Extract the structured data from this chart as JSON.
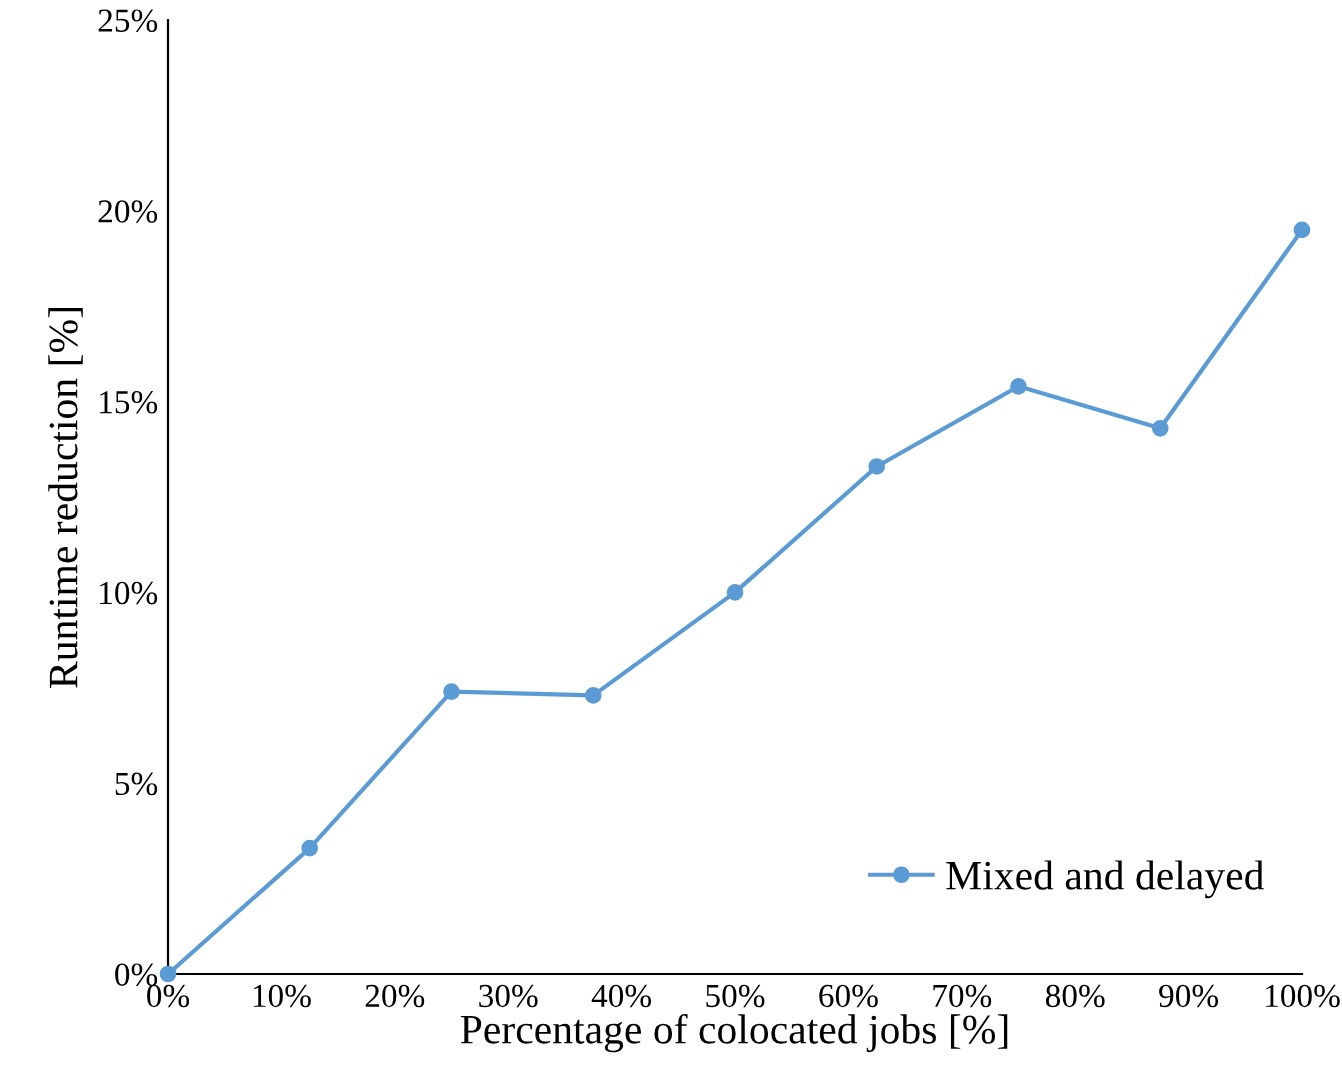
{
  "chart_data": {
    "type": "line",
    "xlabel": "Percentage of colocated jobs [%]",
    "ylabel": "Runtime reduction [%]",
    "x": [
      0,
      12.5,
      25,
      37.5,
      50,
      62.5,
      75,
      87.5,
      100
    ],
    "series": [
      {
        "name": "Mixed and delayed",
        "color": "#5b9bd5",
        "values": [
          0,
          3.3,
          7.4,
          7.3,
          10,
          13.3,
          15.4,
          14.3,
          19.5
        ]
      }
    ],
    "xlim": [
      0,
      100
    ],
    "ylim": [
      0,
      25
    ],
    "xticks": [
      {
        "value": 0,
        "label": "0%"
      },
      {
        "value": 10,
        "label": "10%"
      },
      {
        "value": 20,
        "label": "20%"
      },
      {
        "value": 30,
        "label": "30%"
      },
      {
        "value": 40,
        "label": "40%"
      },
      {
        "value": 50,
        "label": "50%"
      },
      {
        "value": 60,
        "label": "60%"
      },
      {
        "value": 70,
        "label": "70%"
      },
      {
        "value": 80,
        "label": "80%"
      },
      {
        "value": 90,
        "label": "90%"
      },
      {
        "value": 100,
        "label": "100%"
      }
    ],
    "yticks": [
      {
        "value": 0,
        "label": "0%"
      },
      {
        "value": 5,
        "label": "5%"
      },
      {
        "value": 10,
        "label": "10%"
      },
      {
        "value": 15,
        "label": "15%"
      },
      {
        "value": 20,
        "label": "20%"
      },
      {
        "value": 25,
        "label": "25%"
      }
    ],
    "grid": false,
    "legend": "bottom right",
    "marker": "circle",
    "line_style": "solid"
  }
}
